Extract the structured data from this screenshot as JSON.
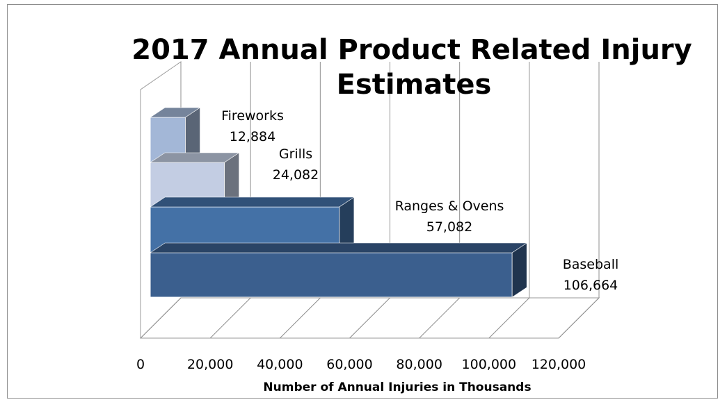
{
  "chart_data": {
    "type": "bar",
    "orientation": "horizontal",
    "style": "3d",
    "title_lines": [
      "2017 Annual Product Related Injury",
      "Estimates"
    ],
    "xlabel": "Number of Annual Injuries in Thousands",
    "ylabel": "",
    "xlim": [
      0,
      120000
    ],
    "xticks": [
      0,
      20000,
      40000,
      60000,
      80000,
      100000,
      120000
    ],
    "xtick_labels": [
      "0",
      "20,000",
      "40,000",
      "60,000",
      "80,000",
      "100,000",
      "120,000"
    ],
    "grid": true,
    "legend": "none",
    "categories": [
      "Baseball",
      "Ranges & Ovens",
      "Grills",
      "Fireworks"
    ],
    "values": [
      106664,
      57082,
      24082,
      12884
    ],
    "value_labels": [
      "106,664",
      "57,082",
      "24,082",
      "12,884"
    ],
    "colors": [
      "#3b5f8e",
      "#4471a6",
      "#c3cde3",
      "#a3b7d7"
    ]
  }
}
